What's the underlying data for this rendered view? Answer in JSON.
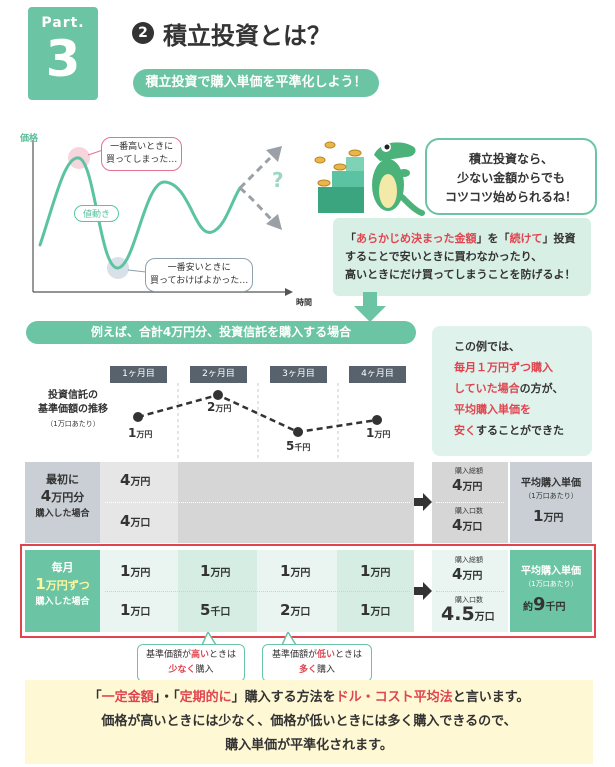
{
  "header": {
    "part_label": "Part.",
    "part_number": "3",
    "title_number": "2",
    "title": "積立投資とは？",
    "subtitle": "積立投資で購入単価を平準化しよう！"
  },
  "illustration": {
    "y_axis_label": "価格",
    "x_axis_label": "時間",
    "wave_label": "値動き",
    "question_mark": "?",
    "high_bubble": [
      "一番高いときに",
      "買ってしまった…"
    ],
    "low_bubble": [
      "一番安いときに",
      "買っておけばよかった…"
    ],
    "speech": [
      "積立投資なら、",
      "少ない金額からでも",
      "コツコツ始められるね！"
    ],
    "explain": {
      "line1_pre": "「",
      "line1_red1": "あらかじめ決まった金額",
      "line1_mid": "」を「",
      "line1_red2": "続けて",
      "line1_post": "」投資",
      "line2": "することで安いときに買わなかったり、",
      "line3": "高いときにだけ買ってしまうことを防げるよ！"
    }
  },
  "example": {
    "bar_title": "例えば、合計4万円分、投資信託を購入する場合",
    "months": [
      "1ヶ月目",
      "2ヶ月目",
      "3ヶ月目",
      "4ヶ月目"
    ],
    "nav_label": [
      "投資信託の",
      "基準価額の推移"
    ],
    "nav_unit": "（1万口あたり）",
    "nav_points": [
      {
        "value": "1",
        "unit": "万円"
      },
      {
        "value": "2",
        "unit": "万円"
      },
      {
        "value": "5",
        "unit": "千円"
      },
      {
        "value": "1",
        "unit": "万円"
      }
    ],
    "result": {
      "line1": "この例では、",
      "line2": "毎月１万円ずつ購入",
      "line3_red": "していた場合",
      "line3_post": "の方が、",
      "line4": "平均購入単価を",
      "line5_red": "安く",
      "line5_post": "することができた"
    }
  },
  "row_lump": {
    "head": [
      "最初に",
      "4",
      "万円分",
      "購入した場合"
    ],
    "amount": {
      "value": "4",
      "unit": "万円"
    },
    "units": {
      "value": "4",
      "unit": "万口"
    },
    "total_amount_label": "購入総額",
    "total_amount": {
      "value": "4",
      "unit": "万円"
    },
    "total_units_label": "購入口数",
    "total_units": {
      "value": "4",
      "unit": "万口"
    },
    "avg_label": "平均購入単価",
    "avg_sub": "（1万口あたり）",
    "avg": {
      "value": "1",
      "unit": "万円"
    }
  },
  "row_monthly": {
    "head": [
      "毎月",
      "1",
      "万円ずつ",
      "購入した場合"
    ],
    "amounts": [
      {
        "value": "1",
        "unit": "万円"
      },
      {
        "value": "1",
        "unit": "万円"
      },
      {
        "value": "1",
        "unit": "万円"
      },
      {
        "value": "1",
        "unit": "万円"
      }
    ],
    "units": [
      {
        "value": "1",
        "unit": "万口"
      },
      {
        "value": "5",
        "unit": "千口"
      },
      {
        "value": "2",
        "unit": "万口"
      },
      {
        "value": "1",
        "unit": "万口"
      }
    ],
    "total_amount_label": "購入総額",
    "total_amount": {
      "value": "4",
      "unit": "万円"
    },
    "total_units_label": "購入口数",
    "total_units": {
      "value": "4.5",
      "unit": "万口"
    },
    "avg_label": "平均購入単価",
    "avg_sub": "（1万口あたり）",
    "avg": {
      "prefix": "約",
      "value": "9",
      "unit": "千円"
    }
  },
  "callouts": [
    {
      "pre": "基準価額が",
      "hl": "高い",
      "post": "ときは",
      "hl2": "少なく",
      "post2": "購入"
    },
    {
      "pre": "基準価額が",
      "hl": "低い",
      "post": "ときは",
      "hl2": "多く",
      "post2": "購入"
    }
  ],
  "bottom": {
    "line1_pre": "「",
    "line1_red1": "一定金額",
    "line1_mid1": "」・「",
    "line1_red2": "定期的に",
    "line1_mid2": "」購入する方法を",
    "line1_red3": "ドル・コスト平均法",
    "line1_post": "と言います。",
    "line2": "価格が高いときには少なく、価格が低いときには多く購入できるので、",
    "line3": "購入単価が平準化されます。"
  },
  "colors": {
    "accent_green": "#6bc4a4",
    "highlight_red": "#e0454f",
    "wave_line": "#5cc3a2",
    "bottom_bg": "#fff8d4"
  }
}
